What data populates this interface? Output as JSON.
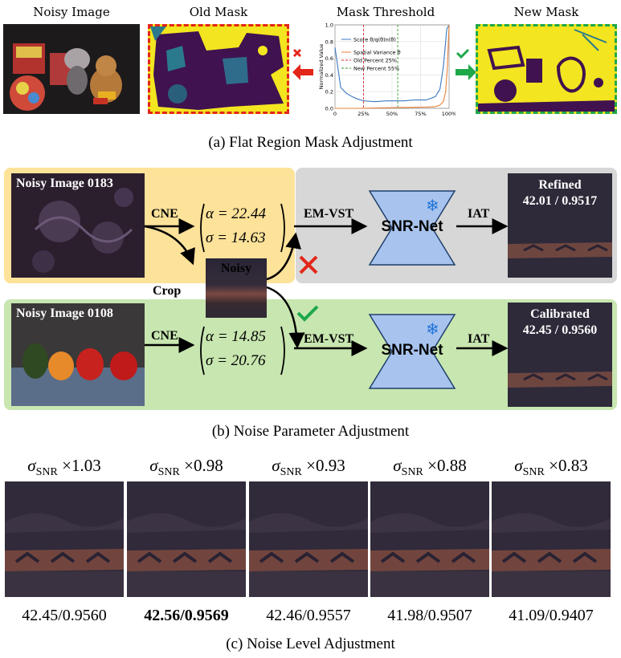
{
  "section_a": {
    "noisy_image_title": "Noisy Image",
    "old_mask_title": "Old Mask",
    "threshold_title": "Mask Threshold",
    "new_mask_title": "New Mask",
    "caption": "(a) Flat Region Mask Adjustment"
  },
  "chart_data": {
    "type": "line",
    "title": "Mask Threshold",
    "ylabel": "Normalized Value",
    "xlabel": "",
    "x_ticks": [
      "0",
      "25%",
      "50%",
      "75%",
      "100%"
    ],
    "y_ticks": [
      "0.0",
      "0.2",
      "0.4",
      "0.6",
      "0.8",
      "1.0"
    ],
    "xlim": [
      0,
      100
    ],
    "ylim": [
      0,
      1.0
    ],
    "grid": true,
    "legend_position": "top-left",
    "series": [
      {
        "name": "Score θ/q(θ)n(θ)",
        "color": "#3a78c0",
        "x": [
          0,
          5,
          10,
          15,
          20,
          25,
          35,
          45,
          50,
          55,
          60,
          70,
          80,
          88,
          92,
          95,
          97,
          98,
          100
        ],
        "values": [
          0.73,
          0.25,
          0.18,
          0.14,
          0.11,
          0.09,
          0.08,
          0.09,
          0.09,
          0.09,
          0.09,
          0.1,
          0.1,
          0.14,
          0.23,
          0.5,
          0.8,
          0.95,
          1.0
        ]
      },
      {
        "name": "Spatial Variance θ",
        "color": "#e8823a",
        "x": [
          0,
          20,
          40,
          60,
          80,
          88,
          92,
          95,
          97,
          98.5,
          100
        ],
        "values": [
          0.0,
          0.0,
          0.005,
          0.01,
          0.015,
          0.02,
          0.04,
          0.08,
          0.2,
          0.5,
          1.0
        ]
      }
    ],
    "vlines": [
      {
        "name": "Old Percent 25%",
        "x": 25,
        "color": "#d62728"
      },
      {
        "name": "New Percent 55%",
        "x": 55,
        "color": "#2ca02c"
      }
    ]
  },
  "legend": {
    "score": "Score θ/q(θ)n(θ)",
    "variance": "Spatial Variance θ",
    "old": "Old Percent 25%",
    "new": "New Percent 55%"
  },
  "section_b": {
    "noisy_0183": "Noisy Image 0183",
    "noisy_0108": "Noisy Image 0108",
    "cne": "CNE",
    "crop": "Crop",
    "noisy": "Noisy",
    "em_vst": "EM-VST",
    "snr_net": "SNR-Net",
    "iat": "IAT",
    "alpha_top": "α = 22.44",
    "sigma_top": "σ = 14.63",
    "alpha_bottom": "α = 14.85",
    "sigma_bottom": "σ = 20.76",
    "refined_label": "Refined",
    "refined_score": "42.01 / 0.9517",
    "calibrated_label": "Calibrated",
    "calibrated_score": "42.45 / 0.9560",
    "caption": "(b) Noise Parameter Adjustment"
  },
  "section_c": {
    "sigma_symbol": "σ",
    "sigma_sub": "SNR",
    "items": [
      {
        "mult": "×1.03",
        "score": "42.45/0.9560"
      },
      {
        "mult": "×0.98",
        "score": "42.56/0.9569"
      },
      {
        "mult": "×0.93",
        "score": "42.46/0.9557"
      },
      {
        "mult": "×0.88",
        "score": "41.98/0.9507"
      },
      {
        "mult": "×0.83",
        "score": "41.09/0.9407"
      }
    ],
    "caption": "(c) Noise Level Adjustment"
  },
  "colors": {
    "panel_yellow": "#fde29a",
    "panel_green": "#c8e6b0",
    "panel_grey": "#d7d7d7",
    "snr_blue": "#a8c4ee",
    "mask_yellow": "#f3e51f",
    "mask_purple": "#40124f",
    "red": "#e32619",
    "green": "#1fa84a"
  }
}
